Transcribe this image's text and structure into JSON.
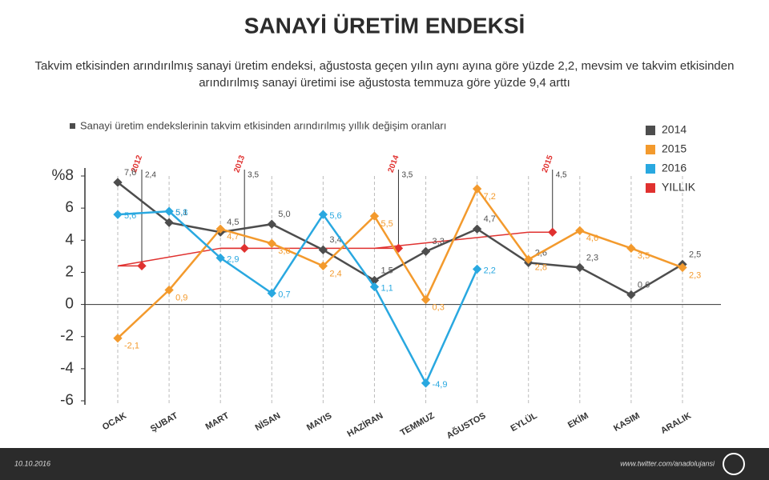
{
  "chart_data": {
    "type": "line",
    "title": "SANAYİ ÜRETİM ENDEKSİ",
    "subtitle": "Takvim etkisinden arındırılmış sanayi üretim endeksi, ağustosta geçen yılın aynı ayına göre yüzde 2,2, mevsim ve takvim etkisinden arındırılmış sanayi üretimi ise ağustosta temmuza göre yüzde 9,4 arttı",
    "note": "Sanayi üretim endekslerinin takvim etkisinden arındırılmış yıllık değişim oranları",
    "categories": [
      "OCAK",
      "ŞUBAT",
      "MART",
      "NİSAN",
      "MAYIS",
      "HAZİRAN",
      "TEMMUZ",
      "AĞUSTOS",
      "EYLÜL",
      "EKİM",
      "KASIM",
      "ARALIK"
    ],
    "series": [
      {
        "name": "2014",
        "color": "#4d4d4d",
        "values": [
          7.6,
          5.1,
          4.5,
          5.0,
          3.4,
          1.5,
          3.3,
          4.7,
          2.6,
          2.3,
          0.6,
          2.5
        ],
        "value_labels": [
          "7,6",
          "5,1",
          "4,5",
          "5,0",
          "3,4",
          "1,5",
          "3,3",
          "4,7",
          "2,6",
          "2,3",
          "0,6",
          "2,5"
        ]
      },
      {
        "name": "2015",
        "color": "#f39a2d",
        "values": [
          -2.1,
          0.9,
          4.7,
          3.8,
          2.4,
          5.5,
          0.3,
          7.2,
          2.8,
          4.6,
          3.5,
          2.3
        ],
        "value_labels": [
          "-2,1",
          "0,9",
          "4,7",
          "3,8",
          "2,4",
          "5,5",
          "0,3",
          "7,2",
          "2,8",
          "4,6",
          "3,5",
          "2,3"
        ]
      },
      {
        "name": "2016",
        "color": "#29a8e0",
        "values": [
          5.6,
          5.8,
          2.9,
          0.7,
          5.6,
          1.1,
          -4.9,
          2.2,
          null,
          null,
          null,
          null
        ],
        "value_labels": [
          "5,6",
          "5,8",
          "2,9",
          "0,7",
          "5,6",
          "1,1",
          "-4,9",
          "2,2",
          null,
          null,
          null,
          null
        ]
      }
    ],
    "annual": {
      "name": "YILLIK",
      "color": "#e0312f",
      "points": [
        {
          "year": "2012",
          "category": "OCAK",
          "value": 2.4,
          "value_label": "2,4"
        },
        {
          "year": "2013",
          "category": "MART",
          "value": 3.5,
          "value_label": "3,5"
        },
        {
          "year": "2014",
          "category": "HAZİRAN",
          "value": 3.5,
          "value_label": "3,5"
        },
        {
          "year": "2015",
          "category": "EYLÜL",
          "value": 4.5,
          "value_label": "4,5"
        }
      ]
    },
    "ylim": [
      -6,
      8
    ],
    "yticks": [
      {
        "value": 8,
        "label": "%8"
      },
      6,
      4,
      2,
      0,
      -2,
      -4,
      -6
    ],
    "legend": "top-right",
    "footer": {
      "date": "10.10.2016",
      "source": "www.twitter.com/anadolujansi"
    }
  }
}
